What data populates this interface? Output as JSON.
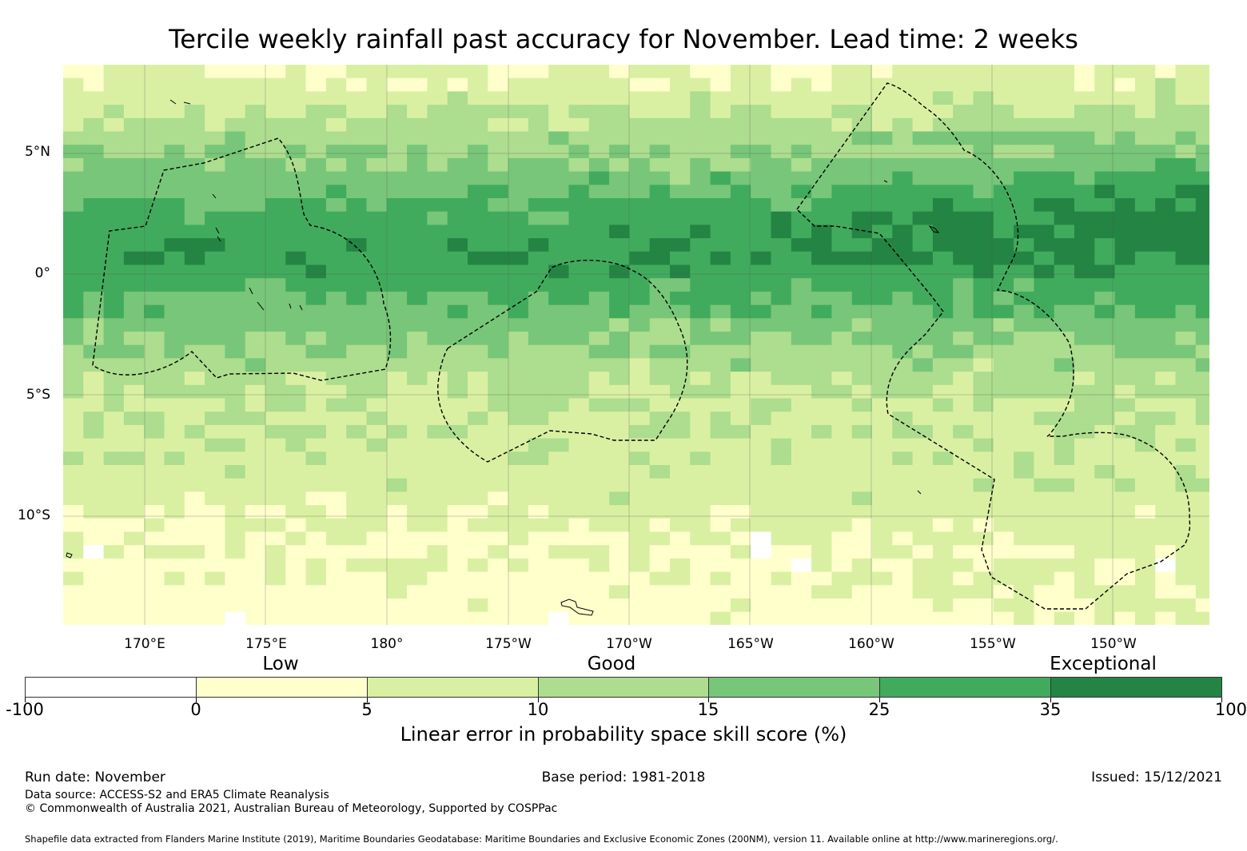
{
  "title": "Tercile weekly rainfall past accuracy for November. Lead time: 2 weeks",
  "map": {
    "lat_labels": [
      "5°N",
      "0°",
      "5°S",
      "10°S"
    ],
    "lon_labels": [
      "170°E",
      "175°E",
      "180°",
      "175°W",
      "170°W",
      "165°W",
      "160°W",
      "155°W",
      "150°W"
    ],
    "lon_range": [
      166.6,
      213.8
    ],
    "lat_range": [
      -14.5,
      8.7
    ]
  },
  "legend": {
    "categories": [
      "Low",
      "Good",
      "Exceptional"
    ],
    "ticks": [
      "-100",
      "0",
      "5",
      "10",
      "15",
      "25",
      "35",
      "100"
    ],
    "colors": [
      "#ffffff",
      "#ffffcc",
      "#d9f0a3",
      "#addd8e",
      "#78c679",
      "#41ab5d",
      "#238443"
    ],
    "title": "Linear error in probability space skill score (%)"
  },
  "footer": {
    "run_date": "Run date: November",
    "base_period": "Base period: 1981-2018",
    "issued": "Issued: 15/12/2021",
    "data_source": "Data source: ACCESS-S2 and ERA5 Climate Reanalysis",
    "copyright": "© Commonwealth of Australia 2021, Australian Bureau of Meteorology, Supported by COSPPac",
    "shapefile": "Shapefile data extracted from Flanders Marine Institute (2019), Maritime Boundaries Geodatabase: Maritime Boundaries and Exclusive Economic Zones (200NM), version 11. Available online at http://www.marineregions.org/."
  }
}
